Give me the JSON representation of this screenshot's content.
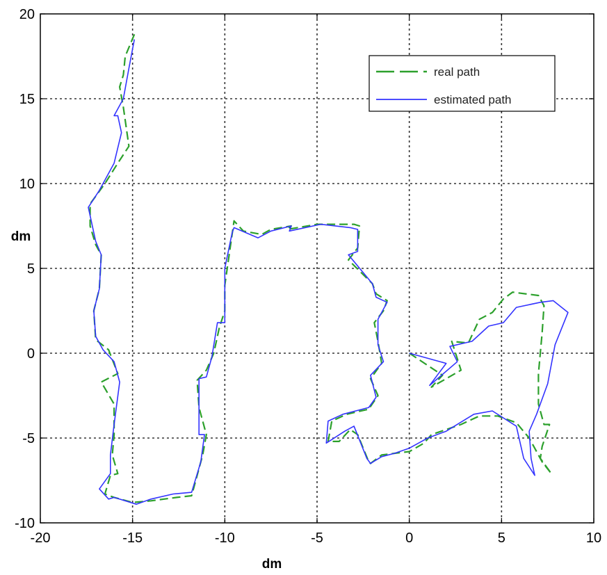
{
  "chart_data": {
    "type": "line",
    "title": "",
    "xlabel": "dm",
    "ylabel": "dm",
    "xlim": [
      -20,
      10
    ],
    "ylim": [
      -10,
      20
    ],
    "xticks": [
      -20,
      -15,
      -10,
      -5,
      0,
      5,
      10
    ],
    "yticks": [
      -10,
      -5,
      0,
      5,
      10,
      15,
      20
    ],
    "grid": true,
    "legend_position": "top-right",
    "series": [
      {
        "name": "real path",
        "style": "dashed",
        "color": "#2ca02c",
        "points": [
          [
            0,
            0
          ],
          [
            1.8,
            -1.3
          ],
          [
            1.2,
            -2
          ],
          [
            2.8,
            -1
          ],
          [
            2.3,
            0.7
          ],
          [
            3.2,
            0.6
          ],
          [
            3.8,
            2
          ],
          [
            4.5,
            2.4
          ],
          [
            5.1,
            3.2
          ],
          [
            5.6,
            3.6
          ],
          [
            6.3,
            3.5
          ],
          [
            7,
            3.4
          ],
          [
            7.3,
            2.8
          ],
          [
            7.2,
            1.2
          ],
          [
            7.0,
            -1.2
          ],
          [
            7.0,
            -3
          ],
          [
            7.3,
            -4.2
          ],
          [
            7.6,
            -4.2
          ],
          [
            7.2,
            -5.5
          ],
          [
            7.1,
            -6.2
          ],
          [
            7.7,
            -7.1
          ],
          [
            7.2,
            -6.4
          ],
          [
            6.5,
            -5
          ],
          [
            5.8,
            -4.1
          ],
          [
            4.8,
            -3.7
          ],
          [
            3.8,
            -3.7
          ],
          [
            2.8,
            -4.2
          ],
          [
            1.2,
            -4.8
          ],
          [
            0.8,
            -5.3
          ],
          [
            0,
            -5.8
          ],
          [
            -0.8,
            -5.9
          ],
          [
            -1.5,
            -6
          ],
          [
            -2.1,
            -6.5
          ],
          [
            -2.2,
            -6.4
          ],
          [
            -2.8,
            -4.8
          ],
          [
            -3.2,
            -4.5
          ],
          [
            -3.8,
            -5.2
          ],
          [
            -4.4,
            -5.2
          ],
          [
            -4.2,
            -4
          ],
          [
            -3.4,
            -3.6
          ],
          [
            -2.2,
            -3.3
          ],
          [
            -1.7,
            -2.5
          ],
          [
            -2.1,
            -1.5
          ],
          [
            -1.5,
            -0.6
          ],
          [
            -1.7,
            0.7
          ],
          [
            -1.9,
            1.8
          ],
          [
            -1.4,
            2.5
          ],
          [
            -1.2,
            3.1
          ],
          [
            -1.8,
            3.5
          ],
          [
            -2.0,
            4.1
          ],
          [
            -3.3,
            5.5
          ],
          [
            -2.8,
            6.2
          ],
          [
            -2.7,
            7.5
          ],
          [
            -3.0,
            7.6
          ],
          [
            -5.0,
            7.6
          ],
          [
            -6.6,
            7.3
          ],
          [
            -6.4,
            7.5
          ],
          [
            -7.5,
            7.3
          ],
          [
            -8.0,
            7.0
          ],
          [
            -9.0,
            7.2
          ],
          [
            -9.5,
            7.8
          ],
          [
            -10.0,
            4.0
          ],
          [
            -10.0,
            2.5
          ],
          [
            -10.3,
            1.5
          ],
          [
            -10.6,
            0
          ],
          [
            -11.0,
            -1
          ],
          [
            -11.5,
            -1.6
          ],
          [
            -11.4,
            -3.2
          ],
          [
            -11.0,
            -4.8
          ],
          [
            -11.2,
            -6.0
          ],
          [
            -11.8,
            -8.4
          ],
          [
            -12.6,
            -8.5
          ],
          [
            -14.0,
            -8.7
          ],
          [
            -15.0,
            -8.8
          ],
          [
            -16.0,
            -8.5
          ],
          [
            -16.5,
            -8.3
          ],
          [
            -16.2,
            -7.2
          ],
          [
            -15.8,
            -7.1
          ],
          [
            -16.1,
            -6
          ],
          [
            -16.0,
            -4.8
          ],
          [
            -16.0,
            -3
          ],
          [
            -16.7,
            -1.7
          ],
          [
            -15.8,
            -1.2
          ],
          [
            -16.3,
            0.2
          ],
          [
            -17.0,
            0.8
          ],
          [
            -17.1,
            2.5
          ],
          [
            -16.8,
            3.8
          ],
          [
            -16.7,
            5.8
          ],
          [
            -17.0,
            6.4
          ],
          [
            -17.3,
            7.5
          ],
          [
            -17.3,
            8.8
          ],
          [
            -16.5,
            10
          ],
          [
            -15.8,
            11.2
          ],
          [
            -15.2,
            12.2
          ],
          [
            -15.5,
            14.5
          ],
          [
            -15.7,
            15.7
          ],
          [
            -15.5,
            16.4
          ],
          [
            -15.4,
            17.5
          ],
          [
            -14.9,
            18.8
          ]
        ]
      },
      {
        "name": "estimated path",
        "style": "solid",
        "color": "#3333ff",
        "points": [
          [
            0,
            0
          ],
          [
            2,
            -0.6
          ],
          [
            1.1,
            -1.9
          ],
          [
            2.6,
            -0.5
          ],
          [
            2.2,
            0.4
          ],
          [
            3.4,
            0.7
          ],
          [
            4.3,
            1.6
          ],
          [
            5.1,
            1.8
          ],
          [
            5.8,
            2.7
          ],
          [
            7.1,
            3
          ],
          [
            7.8,
            3.1
          ],
          [
            8.6,
            2.4
          ],
          [
            7.9,
            0.5
          ],
          [
            7.5,
            -1.8
          ],
          [
            6.9,
            -3.6
          ],
          [
            6.5,
            -4.6
          ],
          [
            6.6,
            -6.2
          ],
          [
            6.8,
            -7.2
          ],
          [
            6.2,
            -6.2
          ],
          [
            5.8,
            -4.3
          ],
          [
            4.5,
            -3.4
          ],
          [
            3.5,
            -3.6
          ],
          [
            2.0,
            -4.6
          ],
          [
            1,
            -5
          ],
          [
            0,
            -5.6
          ],
          [
            -0.8,
            -5.9
          ],
          [
            -1.5,
            -6.1
          ],
          [
            -2.1,
            -6.5
          ],
          [
            -2.3,
            -6.2
          ],
          [
            -3.0,
            -4.3
          ],
          [
            -3.5,
            -4.6
          ],
          [
            -4.5,
            -5.3
          ],
          [
            -4.4,
            -4
          ],
          [
            -3.6,
            -3.6
          ],
          [
            -2.2,
            -3.2
          ],
          [
            -1.8,
            -2.6
          ],
          [
            -2.1,
            -1.3
          ],
          [
            -1.4,
            -0.5
          ],
          [
            -1.7,
            0.5
          ],
          [
            -1.7,
            2
          ],
          [
            -1.2,
            3
          ],
          [
            -1.8,
            3.3
          ],
          [
            -2.0,
            4.1
          ],
          [
            -3.3,
            5.8
          ],
          [
            -2.8,
            6
          ],
          [
            -2.8,
            7.3
          ],
          [
            -3.2,
            7.4
          ],
          [
            -4.8,
            7.6
          ],
          [
            -6.5,
            7.2
          ],
          [
            -6.4,
            7.5
          ],
          [
            -7.5,
            7.2
          ],
          [
            -8.2,
            6.8
          ],
          [
            -9.5,
            7.4
          ],
          [
            -9.6,
            7.1
          ],
          [
            -10.0,
            5
          ],
          [
            -10.0,
            1.8
          ],
          [
            -10.4,
            1.8
          ],
          [
            -10.7,
            -0.2
          ],
          [
            -11.0,
            -1.4
          ],
          [
            -11.4,
            -1.5
          ],
          [
            -11.4,
            -4.8
          ],
          [
            -11.1,
            -4.8
          ],
          [
            -11.3,
            -6.4
          ],
          [
            -11.8,
            -8.2
          ],
          [
            -12.8,
            -8.3
          ],
          [
            -14.0,
            -8.6
          ],
          [
            -14.8,
            -8.9
          ],
          [
            -16.0,
            -8.5
          ],
          [
            -16.3,
            -8.6
          ],
          [
            -16.8,
            -8.0
          ],
          [
            -16.2,
            -7.1
          ],
          [
            -16.2,
            -6.0
          ],
          [
            -16.0,
            -4.2
          ],
          [
            -15.7,
            -1.7
          ],
          [
            -16.0,
            -0.5
          ],
          [
            -16.6,
            0.2
          ],
          [
            -17.0,
            1.0
          ],
          [
            -17.1,
            2.5
          ],
          [
            -16.8,
            3.8
          ],
          [
            -16.7,
            5.8
          ],
          [
            -17.0,
            6.6
          ],
          [
            -17.4,
            8.6
          ],
          [
            -16.8,
            9.6
          ],
          [
            -16.0,
            11.2
          ],
          [
            -15.6,
            13.0
          ],
          [
            -15.8,
            14.0
          ],
          [
            -16.0,
            14.0
          ],
          [
            -15.5,
            15.0
          ],
          [
            -15.2,
            16.8
          ],
          [
            -14.9,
            18.5
          ]
        ]
      }
    ]
  }
}
